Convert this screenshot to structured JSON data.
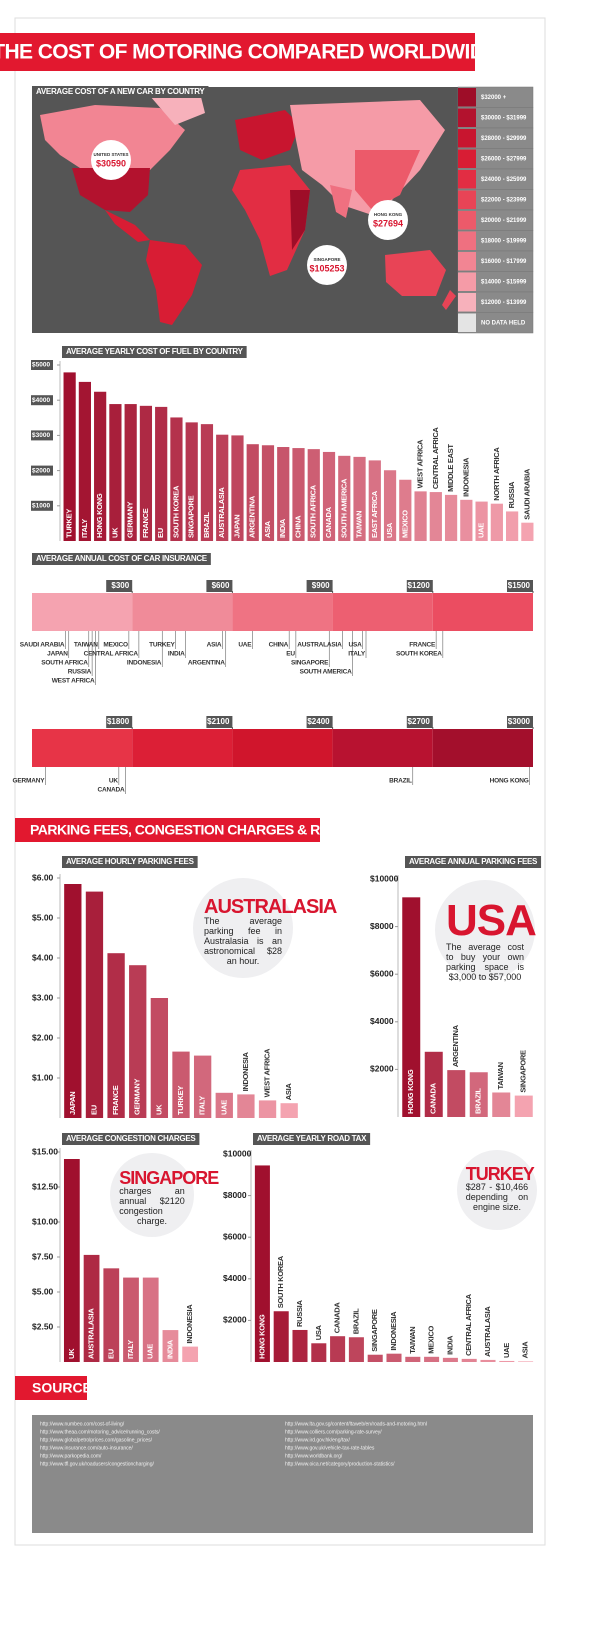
{
  "header": {
    "title": "THE COST OF MOTORING COMPARED WORLDWIDE"
  },
  "section_title": "PARKING FEES, CONGESTION CHARGES & ROAD TAX",
  "chart_data": [
    {
      "type": "choropleth",
      "title": "AVERAGE COST OF A NEW CAR BY COUNTRY",
      "legend": [
        {
          "label": "$32000 +",
          "color": "#9e0d28"
        },
        {
          "label": "$30000 - $31999",
          "color": "#b3122e"
        },
        {
          "label": "$28000 - $29999",
          "color": "#c8152f"
        },
        {
          "label": "$26000 - $27999",
          "color": "#d81d34"
        },
        {
          "label": "$24000 - $25999",
          "color": "#e22d43"
        },
        {
          "label": "$22000 - $23999",
          "color": "#e84456"
        },
        {
          "label": "$20000 - $21999",
          "color": "#ec5a6a"
        },
        {
          "label": "$18000 - $19999",
          "color": "#ef7080"
        },
        {
          "label": "$16000 - $17999",
          "color": "#f28593"
        },
        {
          "label": "$14000 - $15999",
          "color": "#f59ba7"
        },
        {
          "label": "$12000 - $13999",
          "color": "#f7b1bb"
        },
        {
          "label": "NO DATA HELD",
          "color": "#e4e4e4"
        }
      ],
      "callouts": {
        "names": [
          "UNITED STATES",
          "HONG KONG",
          "SINGAPORE"
        ],
        "values": [
          30590,
          27694,
          105253
        ],
        "value_labels": [
          "$30590",
          "$27694",
          "$105253"
        ]
      }
    },
    {
      "type": "bar",
      "title": "AVERAGE YEARLY COST OF FUEL BY COUNTRY",
      "categories": [
        "TURKEY",
        "ITALY",
        "HONG KONG",
        "UK",
        "GERMANY",
        "FRANCE",
        "EU",
        "SOUTH KOREA",
        "SINGAPORE",
        "BRAZIL",
        "AUSTRALASIA",
        "JAPAN",
        "ARGENTINA",
        "ASIA",
        "INDIA",
        "CHINA",
        "SOUTH AFRICA",
        "CANADA",
        "SOUTH AMERICA",
        "TAIWAN",
        "EAST AFRICA",
        "USA",
        "MEXICO",
        "WEST AFRICA",
        "CENTRAL AFRICA",
        "MIDDLE EAST",
        "INDONESIA",
        "UAE",
        "NORTH AFRICA",
        "RUSSIA",
        "SAUDI ARABIA"
      ],
      "values": [
        4790,
        4520,
        4240,
        3890,
        3890,
        3840,
        3810,
        3510,
        3370,
        3320,
        3020,
        3000,
        2750,
        2720,
        2670,
        2640,
        2610,
        2530,
        2420,
        2390,
        2290,
        2010,
        1740,
        1410,
        1390,
        1310,
        1170,
        1120,
        1060,
        840,
        520
      ],
      "ylim": [
        0,
        5000
      ],
      "yticks": [
        {
          "value": 1000,
          "label": "$1000"
        },
        {
          "value": 2000,
          "label": "$2000"
        },
        {
          "value": 3000,
          "label": "$3000"
        },
        {
          "value": 4000,
          "label": "$4000"
        },
        {
          "value": 5000,
          "label": "$5000"
        }
      ],
      "color_range": [
        "#a0102e",
        "#f4a3b0"
      ]
    },
    {
      "type": "strip",
      "title": "AVERAGE ANNUAL COST OF CAR INSURANCE",
      "categories": [
        "SAUDI ARABIA",
        "JAPAN",
        "SOUTH AFRICA",
        "RUSSIA",
        "WEST AFRICA",
        "TAIWAN",
        "MEXICO",
        "CENTRAL AFRICA",
        "INDONESIA",
        "TURKEY",
        "INDIA",
        "ASIA",
        "ARGENTINA",
        "UAE",
        "CHINA",
        "EU",
        "SINGAPORE",
        "AUSTRALASIA",
        "SOUTH AMERICA",
        "USA",
        "ITALY",
        "FRANCE",
        "SOUTH KOREA",
        "GERMANY",
        "UK",
        "CANADA",
        "BRAZIL",
        "HONG KONG"
      ],
      "values": [
        100,
        110,
        170,
        180,
        190,
        200,
        290,
        320,
        390,
        430,
        460,
        570,
        580,
        660,
        770,
        790,
        890,
        930,
        960,
        990,
        1000,
        1210,
        1230,
        1540,
        1760,
        1780,
        2640,
        2990
      ],
      "xlim": [
        0,
        3000
      ],
      "xticks": [
        {
          "value": 300,
          "label": "$300"
        },
        {
          "value": 600,
          "label": "$600"
        },
        {
          "value": 900,
          "label": "$900"
        },
        {
          "value": 1200,
          "label": "$1200"
        },
        {
          "value": 1500,
          "label": "$1500"
        },
        {
          "value": 1800,
          "label": "$1800"
        },
        {
          "value": 2100,
          "label": "$2100"
        },
        {
          "value": 2400,
          "label": "$2400"
        },
        {
          "value": 2700,
          "label": "$2700"
        },
        {
          "value": 3000,
          "label": "$3000"
        }
      ],
      "segment_colors": [
        "#f5a3b0",
        "#f08b99",
        "#ef7383",
        "#ed5f71",
        "#eb4d61",
        "#e73447",
        "#dc1f36",
        "#d0152c",
        "#b81230",
        "#a30f2c"
      ]
    },
    {
      "type": "bar",
      "title": "AVERAGE HOURLY PARKING FEES",
      "categories": [
        "JAPAN",
        "EU",
        "FRANCE",
        "GERMANY",
        "UK",
        "TURKEY",
        "ITALY",
        "UAE",
        "INDONESIA",
        "WEST AFRICA",
        "ASIA"
      ],
      "values": [
        5.85,
        5.66,
        4.12,
        3.82,
        3.0,
        1.66,
        1.56,
        0.63,
        0.59,
        0.44,
        0.37
      ],
      "ylim": [
        0,
        6
      ],
      "yticks": [
        {
          "value": 1,
          "label": "$1.00"
        },
        {
          "value": 2,
          "label": "$2.00"
        },
        {
          "value": 3,
          "label": "$3.00"
        },
        {
          "value": 4,
          "label": "$4.00"
        },
        {
          "value": 5,
          "label": "$5.00"
        },
        {
          "value": 6,
          "label": "$6.00"
        }
      ],
      "color_range": [
        "#a0102e",
        "#f4a3b0"
      ],
      "annotation": {
        "title": "AUSTRALASIA",
        "text": "The average parking fee in Australasia is an astronomical $28 an hour."
      }
    },
    {
      "type": "bar",
      "title": "AVERAGE ANNUAL PARKING FEES",
      "categories": [
        "HONG KONG",
        "CANADA",
        "ARGENTINA",
        "BRAZIL",
        "TAIWAN",
        "SINGAPORE"
      ],
      "values": [
        9230,
        2740,
        1970,
        1880,
        1030,
        900
      ],
      "ylim": [
        0,
        10000
      ],
      "yticks": [
        {
          "value": 2000,
          "label": "$2000"
        },
        {
          "value": 4000,
          "label": "$4000"
        },
        {
          "value": 6000,
          "label": "$6000"
        },
        {
          "value": 8000,
          "label": "$8000"
        },
        {
          "value": 10000,
          "label": "$10000"
        }
      ],
      "color_range": [
        "#a0102e",
        "#f4a3b0"
      ],
      "annotation": {
        "title": "USA",
        "text": "The average cost to buy your own parking space is $3,000 to $57,000"
      }
    },
    {
      "type": "bar",
      "title": "AVERAGE CONGESTION CHARGES",
      "categories": [
        "UK",
        "AUSTRALASIA",
        "EU",
        "ITALY",
        "UAE",
        "INDIA",
        "INDONESIA"
      ],
      "values": [
        14.5,
        7.65,
        6.69,
        6.03,
        6.03,
        2.28,
        1.1
      ],
      "ylim": [
        0,
        15
      ],
      "yticks": [
        {
          "value": 2.5,
          "label": "$2.50"
        },
        {
          "value": 5,
          "label": "$5.00"
        },
        {
          "value": 7.5,
          "label": "$7.50"
        },
        {
          "value": 10,
          "label": "$10.00"
        },
        {
          "value": 12.5,
          "label": "$12.50"
        },
        {
          "value": 15,
          "label": "$15.00"
        }
      ],
      "color_range": [
        "#a0102e",
        "#f4a3b0"
      ],
      "annotation": {
        "title": "SINGAPORE",
        "text": "charges an annual $2120 congestion charge."
      }
    },
    {
      "type": "bar",
      "title": "AVERAGE YEARLY ROAD TAX",
      "categories": [
        "HONG KONG",
        "SOUTH KOREA",
        "RUSSIA",
        "USA",
        "CANADA",
        "BRAZIL",
        "SINGAPORE",
        "INDONESIA",
        "TAIWAN",
        "MEXICO",
        "INDIA",
        "CENTRAL AFRICA",
        "AUSTRALASIA",
        "UAE",
        "ASIA"
      ],
      "values": [
        9450,
        2440,
        1540,
        900,
        1240,
        1190,
        350,
        400,
        250,
        250,
        200,
        150,
        100,
        50,
        30
      ],
      "ylim": [
        0,
        10000
      ],
      "yticks": [
        {
          "value": 2000,
          "label": "$2000"
        },
        {
          "value": 4000,
          "label": "$4000"
        },
        {
          "value": 6000,
          "label": "$6000"
        },
        {
          "value": 8000,
          "label": "$8000"
        },
        {
          "value": 10000,
          "label": "$10000"
        }
      ],
      "color_range": [
        "#a0102e",
        "#f4a3b0"
      ],
      "annotation": {
        "title": "TURKEY",
        "text": "$287 - $10,466 depending on engine size."
      }
    }
  ],
  "sources": {
    "title": "SOURCES",
    "links": [
      "http://www.numbeo.com/cost-of-living/",
      "http://www.theaa.com/motoring_advice/running_costs/",
      "http://www.globalpetrolprices.com/gasoline_prices/",
      "http://www.insurance.com/auto-insurance/",
      "http://www.parkopedia.com/",
      "http://www.tfl.gov.uk/roadusers/congestioncharging/",
      "http://www.lta.gov.sg/content/ltaweb/en/roads-and-motoring.html",
      "http://www.colliers.com/parking-rate-survey/",
      "http://www.ird.gov.hk/eng/tax/",
      "http://www.gov.uk/vehicle-tax-rate-tables",
      "http://www.worldbank.org/",
      "http://www.oica.net/category/production-statistics/"
    ]
  }
}
